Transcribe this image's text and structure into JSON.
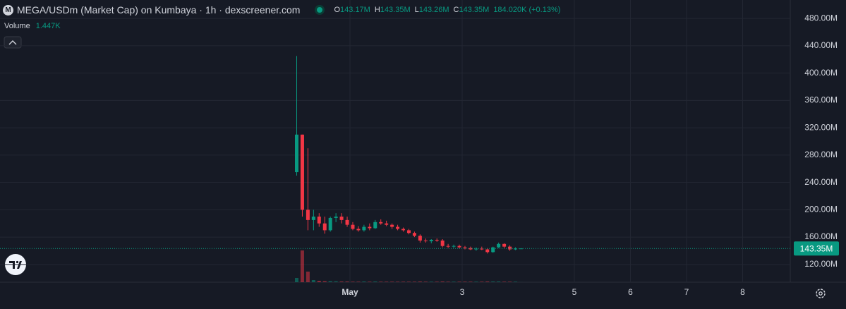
{
  "header": {
    "logo": "M",
    "title": "MEGA/USDm (Market Cap) on Kumbaya · 1h · dexscreener.com",
    "ohlc": [
      {
        "key": "O",
        "value": "143.17M"
      },
      {
        "key": "H",
        "value": "143.35M"
      },
      {
        "key": "L",
        "value": "143.26M"
      },
      {
        "key": "C",
        "value": "143.35M"
      }
    ],
    "change": "184.020K (+0.13%)"
  },
  "chart_data": {
    "type": "candlestick",
    "x": [
      0.05,
      0.15,
      0.25,
      0.35,
      0.45,
      0.55,
      0.65,
      0.75,
      0.85,
      0.95,
      1.05,
      1.15,
      1.25,
      1.35,
      1.45,
      1.55,
      1.65,
      1.75,
      1.85,
      1.95,
      2.05,
      2.15,
      2.25,
      2.35,
      2.45,
      2.55,
      2.65,
      2.75,
      2.85,
      2.95,
      3.05,
      3.15,
      3.25,
      3.35,
      3.45,
      3.55,
      3.65,
      3.75,
      3.85,
      3.95,
      4.05
    ],
    "open": [
      255,
      310,
      200,
      185,
      190,
      180,
      170,
      188,
      190,
      185,
      178,
      172,
      170,
      175,
      173,
      182,
      180,
      178,
      175,
      172,
      170,
      166,
      162,
      155,
      154,
      156,
      155,
      147,
      146,
      147,
      145,
      144,
      142,
      143,
      142,
      138,
      145,
      150,
      146,
      142,
      143.17
    ],
    "high": [
      425,
      310,
      290,
      200,
      195,
      190,
      190,
      195,
      195,
      190,
      182,
      176,
      178,
      180,
      185,
      186,
      184,
      180,
      178,
      174,
      172,
      168,
      164,
      158,
      157,
      158,
      157,
      150,
      149,
      149,
      147,
      146,
      145,
      146,
      144,
      146,
      152,
      151,
      148,
      145,
      143.35
    ],
    "low": [
      250,
      190,
      170,
      170,
      175,
      165,
      168,
      182,
      180,
      175,
      170,
      168,
      168,
      170,
      172,
      178,
      176,
      172,
      170,
      168,
      164,
      160,
      152,
      152,
      151,
      153,
      145,
      144,
      144,
      143,
      142,
      141,
      140,
      141,
      136,
      137,
      144,
      144,
      140,
      141,
      143.26
    ],
    "close": [
      310,
      200,
      185,
      190,
      180,
      170,
      188,
      190,
      185,
      178,
      172,
      170,
      175,
      173,
      182,
      180,
      178,
      175,
      172,
      170,
      166,
      162,
      155,
      154,
      156,
      155,
      147,
      146,
      147,
      145,
      144,
      142,
      143,
      142,
      138,
      145,
      150,
      146,
      142,
      143.17,
      143.35
    ],
    "volume": [
      120,
      900,
      300,
      60,
      40,
      30,
      30,
      25,
      20,
      20,
      15,
      15,
      20,
      15,
      20,
      15,
      15,
      15,
      15,
      15,
      15,
      15,
      20,
      15,
      15,
      15,
      20,
      15,
      15,
      15,
      15,
      15,
      15,
      15,
      20,
      20,
      20,
      15,
      15,
      15,
      1.447
    ],
    "volume_label": "Volume",
    "volume_value": "1.447K",
    "up_color": "#089981",
    "down_color": "#f23645",
    "xlim": [
      -5.24,
      8.85
    ],
    "xticks": [
      {
        "value": 1,
        "label": "May"
      },
      {
        "value": 3,
        "label": "3"
      },
      {
        "value": 5,
        "label": "5"
      },
      {
        "value": 6,
        "label": "6"
      },
      {
        "value": 7,
        "label": "7"
      },
      {
        "value": 8,
        "label": "8"
      }
    ],
    "ylim": [
      94,
      507
    ],
    "yticks": [
      {
        "value": 120,
        "label": "120.00M"
      },
      {
        "value": 160,
        "label": "160.00M"
      },
      {
        "value": 200,
        "label": "200.00M"
      },
      {
        "value": 240,
        "label": "240.00M"
      },
      {
        "value": 280,
        "label": "280.00M"
      },
      {
        "value": 320,
        "label": "320.00M"
      },
      {
        "value": 360,
        "label": "360.00M"
      },
      {
        "value": 400,
        "label": "400.00M"
      },
      {
        "value": 440,
        "label": "440.00M"
      },
      {
        "value": 480,
        "label": "480.00M"
      }
    ],
    "y2lim": [
      0,
      2000
    ],
    "last_price": 143.35,
    "last_price_label": "143.35M",
    "grid": true
  }
}
